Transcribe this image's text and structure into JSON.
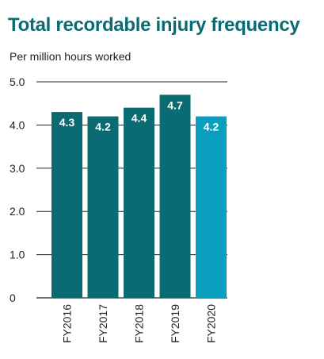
{
  "chart_data": {
    "type": "bar",
    "title": "Total recordable injury frequency",
    "subtitle": "Per million hours worked",
    "categories": [
      "FY2016",
      "FY2017",
      "FY2018",
      "FY2019",
      "FY2020"
    ],
    "values": [
      4.3,
      4.2,
      4.4,
      4.7,
      4.2
    ],
    "value_labels": [
      "4.3",
      "4.2",
      "4.4",
      "4.7",
      "4.2"
    ],
    "ylim": [
      0,
      5
    ],
    "yticks": [
      {
        "value": 0,
        "label": "0"
      },
      {
        "value": 1,
        "label": "1.0"
      },
      {
        "value": 2,
        "label": "2.0"
      },
      {
        "value": 3,
        "label": "3.0"
      },
      {
        "value": 4,
        "label": "4.0"
      },
      {
        "value": 5,
        "label": "5.0"
      }
    ],
    "grid": true,
    "colors": {
      "title": "#0a6b73",
      "bar": "#0a6b73",
      "bar_highlight": "#0a9fbf",
      "gridline": "#222222"
    },
    "highlight_index": 4
  }
}
